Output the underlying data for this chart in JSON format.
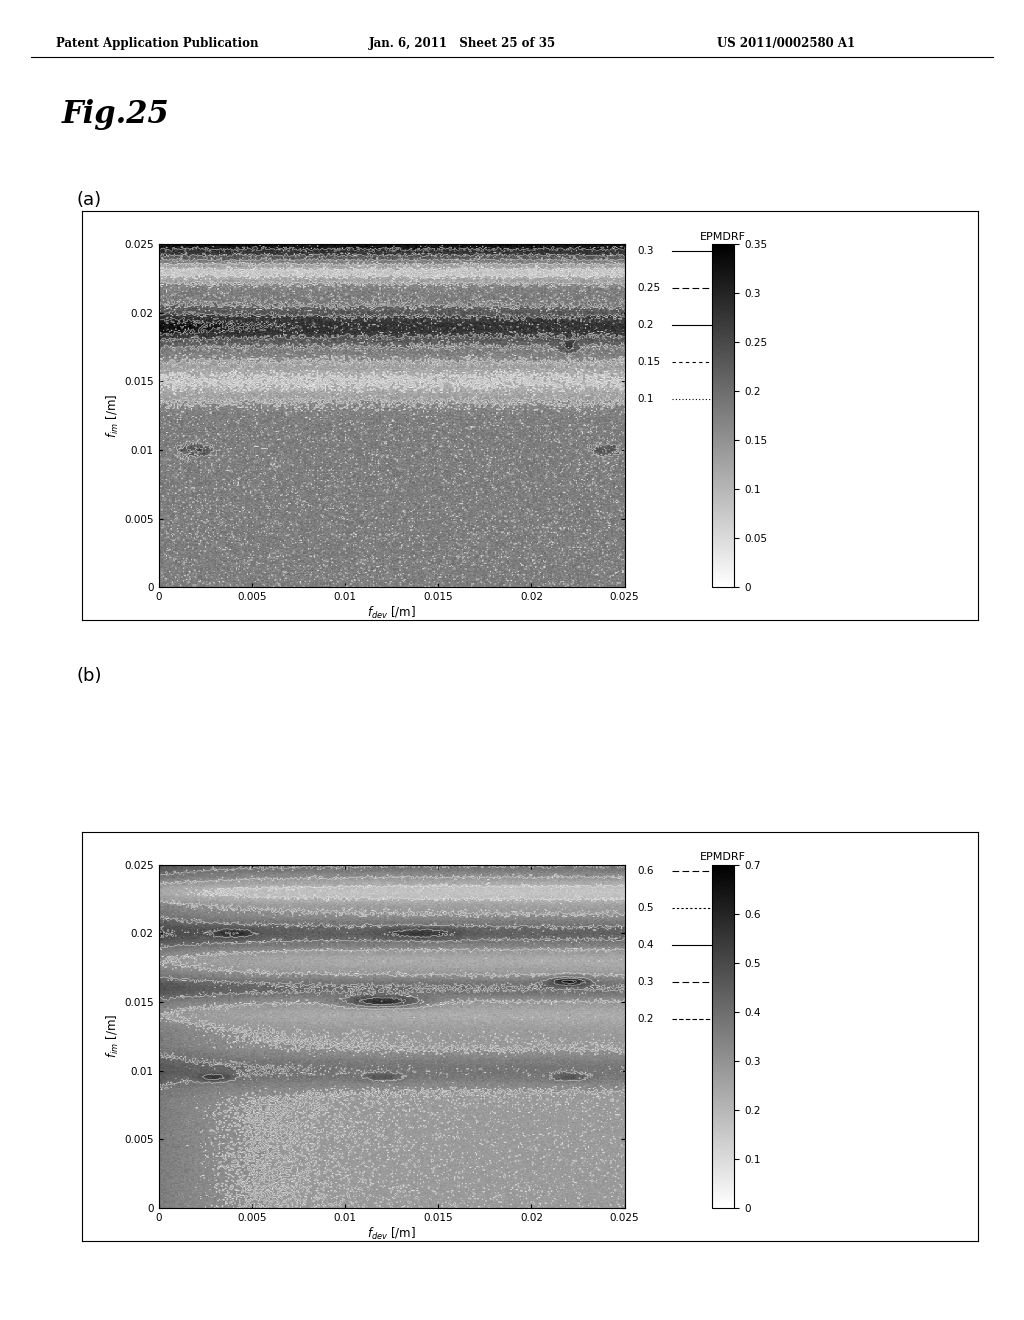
{
  "header_left": "Patent Application Publication",
  "header_mid": "Jan. 6, 2011   Sheet 25 of 35",
  "header_right": "US 2011/0002580 A1",
  "fig_label": "Fig.25",
  "panel_a_label": "(a)",
  "panel_b_label": "(b)",
  "xlabel_a": "f_{dev} [/m]",
  "xlabel_b": "f_{dev} [/m]",
  "ylabel": "f_{im} [/m]",
  "xlim": [
    0,
    0.025
  ],
  "ylim": [
    0,
    0.025
  ],
  "xticks": [
    0,
    0.005,
    0.01,
    0.015,
    0.02,
    0.025
  ],
  "yticks": [
    0,
    0.005,
    0.01,
    0.015,
    0.02,
    0.025
  ],
  "xtick_labels": [
    "0",
    "0.005",
    "0.01",
    "0.015",
    "0.02",
    "0.025"
  ],
  "ytick_labels": [
    "0",
    "0.005",
    "0.01",
    "0.015",
    "0.02",
    "0.025"
  ],
  "colorbar_label": "EPMDRF",
  "panel_a_cbar_ticks": [
    0,
    0.05,
    0.1,
    0.15,
    0.2,
    0.25,
    0.3,
    0.35
  ],
  "panel_b_cbar_ticks": [
    0,
    0.1,
    0.2,
    0.3,
    0.4,
    0.5,
    0.6,
    0.7
  ],
  "panel_a_contour_levels": [
    0.1,
    0.15,
    0.2,
    0.25,
    0.3
  ],
  "panel_b_contour_levels": [
    0.2,
    0.3,
    0.4,
    0.5,
    0.6
  ],
  "panel_a_vmax": 0.35,
  "panel_b_vmax": 0.7,
  "panel_a_legend_labels": [
    "0.3",
    "0.25",
    "0.2",
    "0.15",
    "0.1"
  ],
  "panel_b_legend_labels": [
    "0.6",
    "0.5",
    "0.4",
    "0.3",
    "0.2"
  ],
  "bg_color": "#ffffff",
  "text_color": "#000000"
}
